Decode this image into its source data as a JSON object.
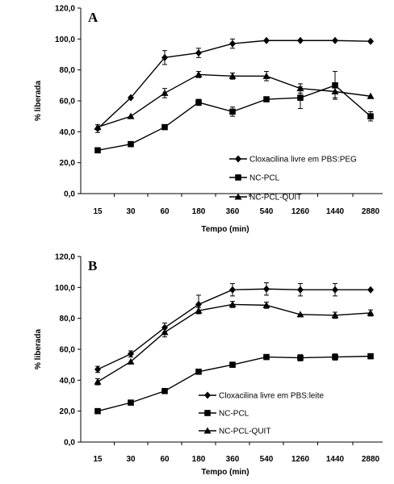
{
  "chart_data": [
    {
      "type": "line",
      "panel_label": "A",
      "categories": [
        "15",
        "30",
        "60",
        "180",
        "360",
        "540",
        "1260",
        "1440",
        "2880"
      ],
      "xlabel": "Tempo (min)",
      "ylabel": "% liberada",
      "ylim": [
        0,
        120
      ],
      "yticks": [
        "0,0",
        "20,0",
        "40,0",
        "60,0",
        "80,0",
        "100,0",
        "120,0"
      ],
      "grid": false,
      "legend_position": "bottom-right",
      "series": [
        {
          "name": "Cloxacilina livre em PBS:PEG",
          "marker": "diamond",
          "values": [
            42,
            62,
            88,
            91,
            97,
            99,
            99,
            99,
            98.5
          ],
          "errors": [
            2.5,
            0,
            4.5,
            3,
            3,
            0,
            0,
            0,
            0
          ]
        },
        {
          "name": "NC-PCL",
          "marker": "square",
          "values": [
            28,
            32,
            43,
            59,
            53,
            61,
            62,
            70,
            50
          ],
          "errors": [
            0,
            0,
            0,
            2,
            3,
            0,
            7,
            9,
            3
          ]
        },
        {
          "name": "NC-PCL-QUIT",
          "marker": "triangle",
          "values": [
            43,
            50,
            65,
            77,
            76,
            76,
            68,
            66,
            63
          ],
          "errors": [
            0,
            0,
            3,
            2,
            2,
            3,
            3,
            4,
            0
          ]
        }
      ]
    },
    {
      "type": "line",
      "panel_label": "B",
      "categories": [
        "15",
        "30",
        "60",
        "180",
        "360",
        "540",
        "1260",
        "1440",
        "2880"
      ],
      "xlabel": "Tempo (min)",
      "ylabel": "% liberada",
      "ylim": [
        0,
        120
      ],
      "yticks": [
        "0,0",
        "20,0",
        "40,0",
        "60,0",
        "80,0",
        "100,0",
        "120,0"
      ],
      "grid": false,
      "legend_position": "bottom-right",
      "series": [
        {
          "name": "Cloxacilina livre em PBS:leite",
          "marker": "diamond",
          "values": [
            47,
            57,
            74,
            89,
            98.5,
            99,
            98.5,
            98.5,
            98.5
          ],
          "errors": [
            2,
            2,
            3,
            6,
            4,
            4,
            4,
            4,
            0
          ]
        },
        {
          "name": "NC-PCL",
          "marker": "square",
          "values": [
            20,
            25.5,
            33,
            45.5,
            50,
            55,
            54.5,
            55,
            55.5
          ],
          "errors": [
            0,
            0,
            0,
            0,
            0,
            0,
            2,
            2,
            0
          ]
        },
        {
          "name": "NC-PCL-QUIT",
          "marker": "triangle",
          "values": [
            39,
            52,
            71,
            85,
            89,
            88.5,
            82.5,
            82,
            83.5
          ],
          "errors": [
            2,
            0,
            3,
            2,
            2,
            2,
            0,
            2,
            2
          ]
        }
      ]
    }
  ]
}
